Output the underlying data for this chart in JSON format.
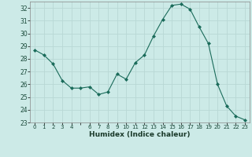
{
  "x": [
    0,
    1,
    2,
    3,
    4,
    5,
    6,
    7,
    8,
    9,
    10,
    11,
    12,
    13,
    14,
    15,
    16,
    17,
    18,
    19,
    20,
    21,
    22,
    23
  ],
  "y": [
    28.7,
    28.3,
    27.6,
    26.3,
    25.7,
    25.7,
    25.8,
    25.2,
    25.4,
    26.8,
    26.4,
    27.7,
    28.3,
    29.8,
    31.1,
    32.2,
    32.3,
    31.9,
    30.5,
    29.2,
    26.0,
    24.3,
    23.5,
    23.2
  ],
  "line_color": "#1a6b5a",
  "marker": "D",
  "marker_size": 2.0,
  "bg_color": "#cceae7",
  "grid_color": "#b8d8d5",
  "xlabel": "Humidex (Indice chaleur)",
  "xlim": [
    -0.5,
    23.5
  ],
  "ylim": [
    23,
    32.5
  ],
  "yticks": [
    23,
    24,
    25,
    26,
    27,
    28,
    29,
    30,
    31,
    32
  ],
  "xtick_labels": [
    "0",
    "1",
    "2",
    "3",
    "4",
    "",
    "6",
    "7",
    "8",
    "9",
    "10",
    "11",
    "12",
    "13",
    "14",
    "15",
    "16",
    "17",
    "18",
    "19",
    "20",
    "21",
    "22",
    "23"
  ],
  "xticks": [
    0,
    1,
    2,
    3,
    4,
    5,
    6,
    7,
    8,
    9,
    10,
    11,
    12,
    13,
    14,
    15,
    16,
    17,
    18,
    19,
    20,
    21,
    22,
    23
  ]
}
